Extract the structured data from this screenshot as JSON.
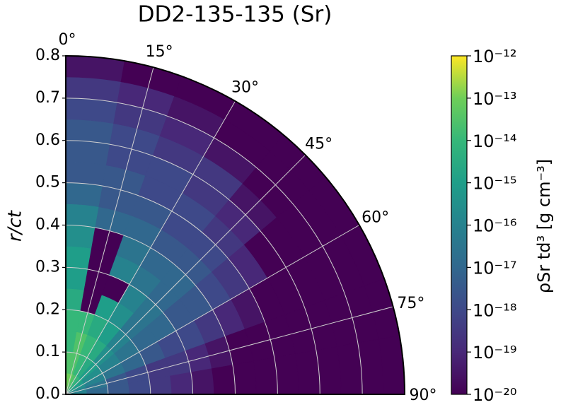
{
  "chart_data": {
    "type": "polar-heatmap",
    "title": "DD2-135-135 (Sr)",
    "ylabel": "r/ct",
    "colorbar_label": "ρSr td³ [g cm⁻³]",
    "colormap": "viridis",
    "clog": true,
    "grid": true,
    "rlim": [
      0,
      0.8
    ],
    "rticks": [
      {
        "value": 0,
        "label": "0.0"
      },
      0.1,
      0.2,
      0.3,
      0.4,
      0.5,
      0.6,
      0.7,
      0.8
    ],
    "thetalim": [
      0,
      90
    ],
    "thetaticks": [
      {
        "value": 0,
        "label": "0°"
      },
      {
        "value": 15,
        "label": "15°"
      },
      {
        "value": 30,
        "label": "30°"
      },
      {
        "value": 45,
        "label": "45°"
      },
      {
        "value": 60,
        "label": "60°"
      },
      {
        "value": 75,
        "label": "75°"
      },
      {
        "value": 90,
        "label": "90°"
      }
    ],
    "r_bins": [
      0,
      0.05,
      0.1,
      0.15,
      0.2,
      0.25,
      0.3,
      0.35,
      0.4,
      0.45,
      0.5,
      0.55,
      0.6,
      0.65,
      0.7,
      0.75,
      0.8
    ],
    "theta_bins": [
      0,
      10,
      20,
      30,
      40,
      50,
      60,
      70,
      80,
      90
    ],
    "z": [
      [
        1e-13,
        1e-13,
        3e-14,
        1e-14,
        3e-15,
        1e-15,
        3e-16,
        1e-16,
        1e-16
      ],
      [
        3e-14,
        3e-14,
        1e-14,
        3e-15,
        1e-15,
        3e-16,
        1e-16,
        3e-17,
        1e-17
      ],
      [
        1e-14,
        3e-14,
        1e-14,
        3e-15,
        3e-16,
        1e-16,
        3e-17,
        3e-18,
        3e-18
      ],
      [
        1e-14,
        1e-14,
        3e-15,
        1e-15,
        1e-16,
        3e-17,
        1e-17,
        1e-18,
        1e-18
      ],
      [
        3e-15,
        1e-20,
        1e-15,
        3e-16,
        3e-17,
        1e-17,
        3e-18,
        3e-19,
        3e-19
      ],
      [
        1e-15,
        1e-20,
        1e-20,
        1e-16,
        3e-17,
        1e-17,
        1e-18,
        3e-19,
        1e-19
      ],
      [
        1e-15,
        1e-20,
        1e-16,
        3e-17,
        1e-17,
        3e-18,
        1e-18,
        1e-19,
        3e-20
      ],
      [
        3e-16,
        1e-20,
        3e-17,
        1e-17,
        1e-17,
        3e-18,
        3e-19,
        3e-20,
        1e-20
      ],
      [
        1e-16,
        1e-17,
        1e-17,
        3e-18,
        3e-18,
        1e-18,
        1e-19,
        1e-20,
        1e-20
      ],
      [
        1e-17,
        3e-18,
        3e-18,
        1e-18,
        1e-18,
        3e-19,
        3e-20,
        1e-20,
        1e-20
      ],
      [
        3e-18,
        3e-18,
        1e-18,
        1e-18,
        3e-19,
        1e-19,
        1e-20,
        1e-20,
        1e-20
      ],
      [
        3e-18,
        1e-18,
        1e-18,
        3e-19,
        1e-19,
        1e-20,
        1e-20,
        1e-20,
        1e-20
      ],
      [
        3e-18,
        1e-18,
        3e-19,
        3e-19,
        3e-20,
        1e-20,
        1e-20,
        1e-20,
        1e-20
      ],
      [
        1e-18,
        3e-19,
        1e-19,
        3e-20,
        1e-20,
        1e-20,
        1e-20,
        1e-20,
        1e-20
      ],
      [
        3e-19,
        1e-19,
        3e-20,
        1e-20,
        1e-20,
        1e-20,
        1e-20,
        1e-20,
        1e-20
      ],
      [
        3e-20,
        1e-20,
        1e-20,
        1e-20,
        1e-20,
        1e-20,
        1e-20,
        1e-20,
        1e-20
      ]
    ],
    "clim": [
      1e-20,
      1e-12
    ],
    "cticks": [
      {
        "value": 1e-20,
        "label": "10⁻²⁰"
      },
      {
        "value": 1e-19,
        "label": "10⁻¹⁹"
      },
      {
        "value": 1e-18,
        "label": "10⁻¹⁸"
      },
      {
        "value": 1e-17,
        "label": "10⁻¹⁷"
      },
      {
        "value": 1e-16,
        "label": "10⁻¹⁶"
      },
      {
        "value": 1e-15,
        "label": "10⁻¹⁵"
      },
      {
        "value": 1e-14,
        "label": "10⁻¹⁴"
      },
      {
        "value": 1e-13,
        "label": "10⁻¹³"
      },
      {
        "value": 1e-12,
        "label": "10⁻¹²"
      }
    ]
  }
}
